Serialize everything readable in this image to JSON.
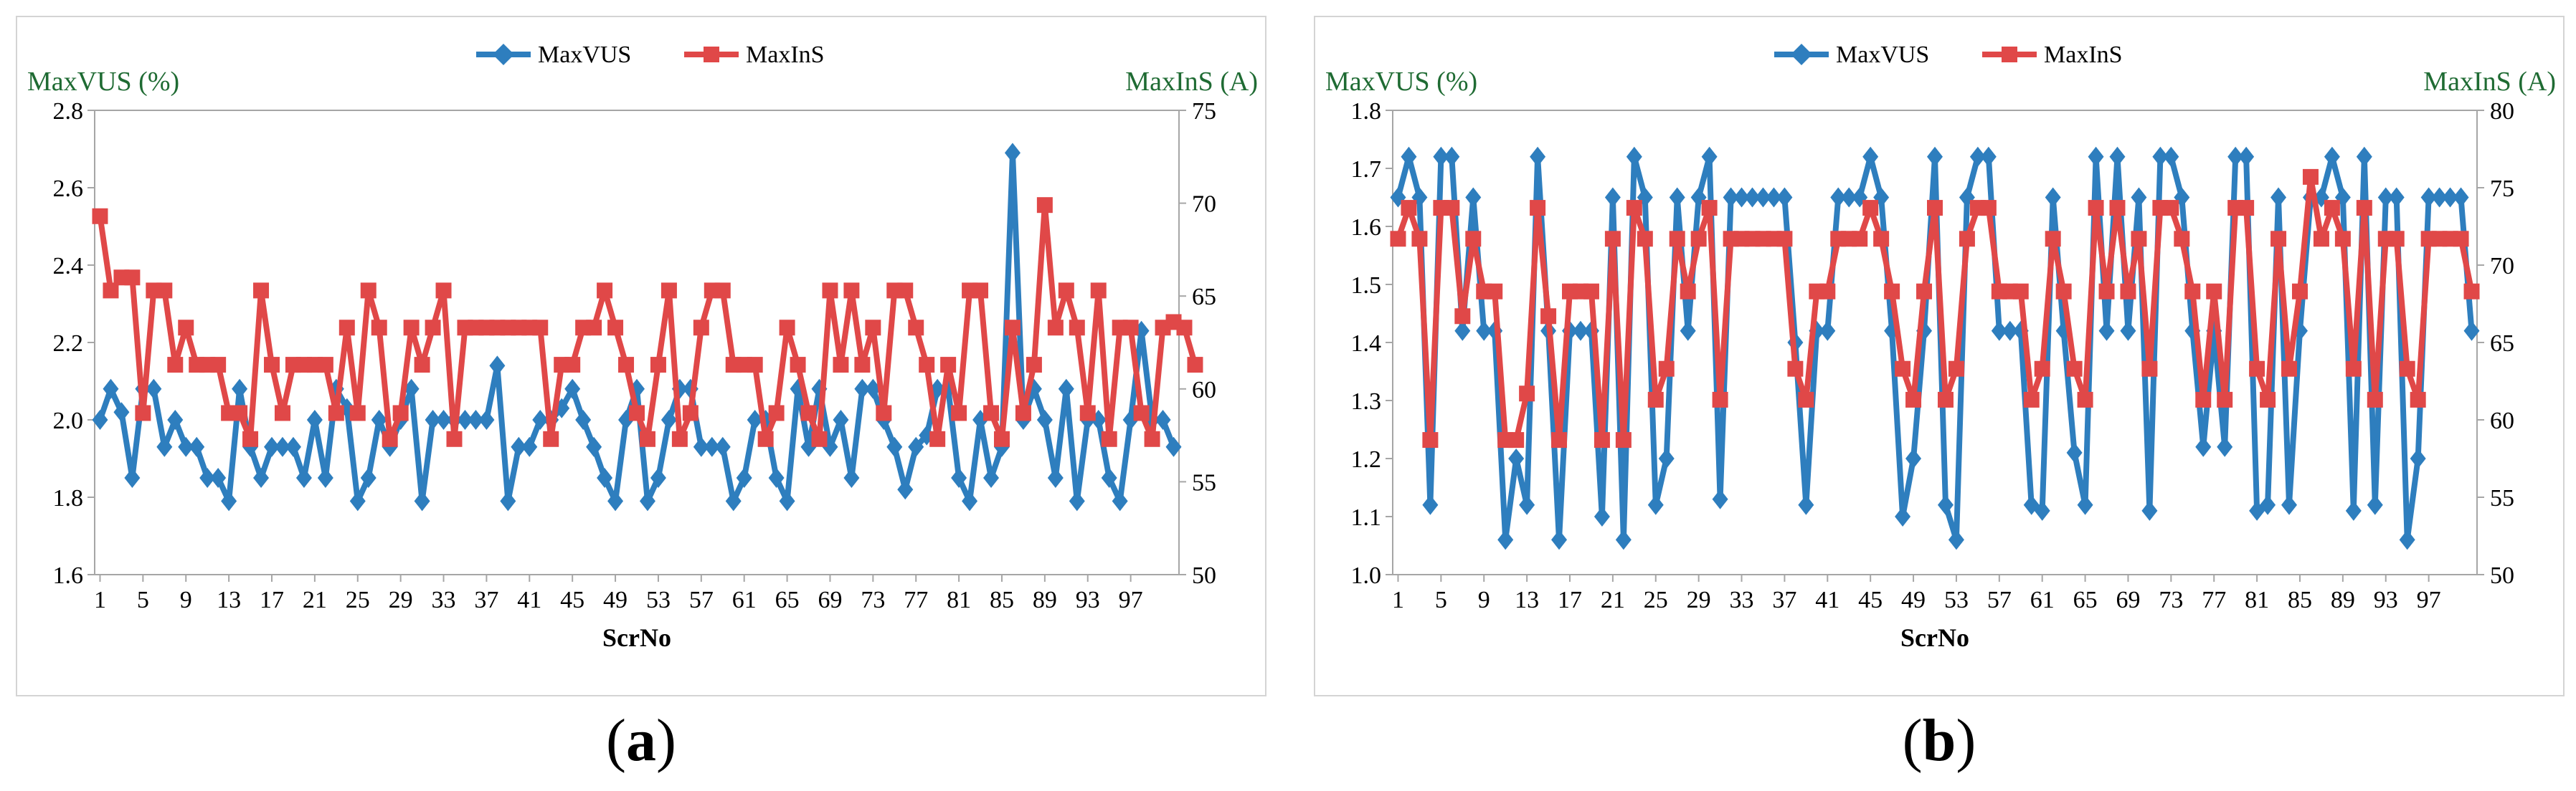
{
  "colors": {
    "vus": "#2e7ebe",
    "ins": "#e04848",
    "title": "#1f6b33",
    "axis": "#a6a6a6"
  },
  "captions": {
    "a_letter": "a",
    "b_letter": "b",
    "open": "(",
    "close": ")"
  },
  "chart_data": [
    {
      "type": "line",
      "title": "",
      "xlabel": "ScrNo",
      "ylabel": "MaxVUS (%)",
      "y2label": "MaxInS (A)",
      "ylim": [
        1.6,
        2.8
      ],
      "y2lim": [
        50,
        75
      ],
      "yticks": [
        "1.6",
        "1.8",
        "2.0",
        "2.2",
        "2.4",
        "2.6",
        "2.8"
      ],
      "y2ticks": [
        "50",
        "55",
        "60",
        "65",
        "70",
        "75"
      ],
      "xticks": [
        "1",
        "5",
        "9",
        "13",
        "17",
        "21",
        "25",
        "29",
        "33",
        "37",
        "41",
        "45",
        "49",
        "53",
        "57",
        "61",
        "65",
        "69",
        "73",
        "77",
        "81",
        "85",
        "89",
        "93",
        "97"
      ],
      "legend": [
        "MaxVUS",
        "MaxInS"
      ],
      "legend_position": "top-center",
      "series": [
        {
          "name": "MaxVUS",
          "axis": "left",
          "marker": "diamond",
          "values": [
            2.0,
            2.08,
            2.02,
            1.85,
            2.08,
            2.08,
            1.93,
            2.0,
            1.93,
            1.93,
            1.85,
            1.85,
            1.79,
            2.08,
            1.93,
            1.85,
            1.93,
            1.93,
            1.93,
            1.85,
            2.0,
            1.85,
            2.08,
            2.03,
            1.79,
            1.85,
            2.0,
            1.93,
            2.0,
            2.08,
            1.79,
            2.0,
            2.0,
            2.0,
            2.0,
            2.0,
            2.0,
            2.14,
            1.79,
            1.93,
            1.93,
            2.0,
            2.0,
            2.03,
            2.08,
            2.0,
            1.93,
            1.85,
            1.79,
            2.0,
            2.08,
            1.79,
            1.85,
            2.0,
            2.08,
            2.08,
            1.93,
            1.93,
            1.93,
            1.79,
            1.85,
            2.0,
            2.0,
            1.85,
            1.79,
            2.08,
            1.93,
            2.08,
            1.93,
            2.0,
            1.85,
            2.08,
            2.08,
            2.0,
            1.93,
            1.82,
            1.93,
            1.96,
            2.08,
            2.08,
            1.85,
            1.79,
            2.0,
            1.85,
            1.93,
            2.69,
            2.0,
            2.08,
            2.0,
            1.85,
            2.08,
            1.79,
            2.0,
            2.0,
            1.85,
            1.79,
            2.0,
            2.23,
            2.0,
            2.0,
            1.93
          ]
        },
        {
          "name": "MaxInS",
          "axis": "right",
          "marker": "square",
          "values": [
            69.3,
            65.3,
            66.0,
            66.0,
            58.7,
            65.3,
            65.3,
            61.3,
            63.3,
            61.3,
            61.3,
            61.3,
            58.7,
            58.7,
            57.3,
            65.3,
            61.3,
            58.7,
            61.3,
            61.3,
            61.3,
            61.3,
            58.7,
            63.3,
            58.7,
            65.3,
            63.3,
            57.3,
            58.7,
            63.3,
            61.3,
            63.3,
            65.3,
            57.3,
            63.3,
            63.3,
            63.3,
            63.3,
            63.3,
            63.3,
            63.3,
            63.3,
            57.3,
            61.3,
            61.3,
            63.3,
            63.3,
            65.3,
            63.3,
            61.3,
            58.7,
            57.3,
            61.3,
            65.3,
            57.3,
            58.7,
            63.3,
            65.3,
            65.3,
            61.3,
            61.3,
            61.3,
            57.3,
            58.7,
            63.3,
            61.3,
            58.7,
            57.3,
            65.3,
            61.3,
            65.3,
            61.3,
            63.3,
            58.7,
            65.3,
            65.3,
            63.3,
            61.3,
            57.3,
            61.3,
            58.7,
            65.3,
            65.3,
            58.7,
            57.3,
            63.3,
            58.7,
            61.3,
            69.9,
            63.3,
            65.3,
            63.3,
            58.7,
            65.3,
            57.3,
            63.3,
            63.3,
            58.7,
            57.3,
            63.3,
            63.6,
            63.3,
            61.3
          ]
        }
      ]
    },
    {
      "type": "line",
      "title": "",
      "xlabel": "ScrNo",
      "ylabel": "MaxVUS (%)",
      "y2label": "MaxInS (A)",
      "ylim": [
        1.0,
        1.8
      ],
      "y2lim": [
        50,
        80
      ],
      "yticks": [
        "1.0",
        "1.1",
        "1.2",
        "1.3",
        "1.4",
        "1.5",
        "1.6",
        "1.7",
        "1.8"
      ],
      "y2ticks": [
        "50",
        "55",
        "60",
        "65",
        "70",
        "75",
        "80"
      ],
      "xticks": [
        "1",
        "5",
        "9",
        "13",
        "17",
        "21",
        "25",
        "29",
        "33",
        "37",
        "41",
        "45",
        "49",
        "53",
        "57",
        "61",
        "65",
        "69",
        "73",
        "77",
        "81",
        "85",
        "89",
        "93",
        "97"
      ],
      "legend": [
        "MaxVUS",
        "MaxInS"
      ],
      "legend_position": "top-center",
      "series": [
        {
          "name": "MaxVUS",
          "axis": "left",
          "marker": "diamond",
          "values": [
            1.65,
            1.72,
            1.65,
            1.12,
            1.72,
            1.72,
            1.42,
            1.65,
            1.42,
            1.42,
            1.06,
            1.2,
            1.12,
            1.72,
            1.42,
            1.06,
            1.42,
            1.42,
            1.42,
            1.1,
            1.65,
            1.06,
            1.72,
            1.65,
            1.12,
            1.2,
            1.65,
            1.42,
            1.65,
            1.72,
            1.13,
            1.65,
            1.65,
            1.65,
            1.65,
            1.65,
            1.65,
            1.4,
            1.12,
            1.42,
            1.42,
            1.65,
            1.65,
            1.65,
            1.72,
            1.65,
            1.42,
            1.1,
            1.2,
            1.42,
            1.72,
            1.12,
            1.06,
            1.65,
            1.72,
            1.72,
            1.42,
            1.42,
            1.42,
            1.12,
            1.11,
            1.65,
            1.42,
            1.21,
            1.12,
            1.72,
            1.42,
            1.72,
            1.42,
            1.65,
            1.11,
            1.72,
            1.72,
            1.65,
            1.42,
            1.22,
            1.42,
            1.22,
            1.72,
            1.72,
            1.11,
            1.12,
            1.65,
            1.12,
            1.42,
            1.65,
            1.65,
            1.72,
            1.65,
            1.11,
            1.72,
            1.12,
            1.65,
            1.65,
            1.06,
            1.2,
            1.65,
            1.65,
            1.65,
            1.65,
            1.42
          ]
        },
        {
          "name": "MaxInS",
          "axis": "right",
          "marker": "square",
          "values": [
            71.7,
            73.7,
            71.7,
            58.7,
            73.7,
            73.7,
            66.7,
            71.7,
            68.3,
            68.3,
            58.7,
            58.7,
            61.7,
            73.7,
            66.7,
            58.7,
            68.3,
            68.3,
            68.3,
            58.7,
            71.7,
            58.7,
            73.7,
            71.7,
            61.3,
            63.3,
            71.7,
            68.3,
            71.7,
            73.7,
            61.3,
            71.7,
            71.7,
            71.7,
            71.7,
            71.7,
            71.7,
            63.3,
            61.3,
            68.3,
            68.3,
            71.7,
            71.7,
            71.7,
            73.7,
            71.7,
            68.3,
            63.3,
            61.3,
            68.3,
            73.7,
            61.3,
            63.3,
            71.7,
            73.7,
            73.7,
            68.3,
            68.3,
            68.3,
            61.3,
            63.3,
            71.7,
            68.3,
            63.3,
            61.3,
            73.7,
            68.3,
            73.7,
            68.3,
            71.7,
            63.3,
            73.7,
            73.7,
            71.7,
            68.3,
            61.3,
            68.3,
            61.3,
            73.7,
            73.7,
            63.3,
            61.3,
            71.7,
            63.3,
            68.3,
            75.7,
            71.7,
            73.7,
            71.7,
            63.3,
            73.7,
            61.3,
            71.7,
            71.7,
            63.3,
            61.3,
            71.7,
            71.7,
            71.7,
            71.7,
            68.3
          ]
        }
      ]
    }
  ]
}
